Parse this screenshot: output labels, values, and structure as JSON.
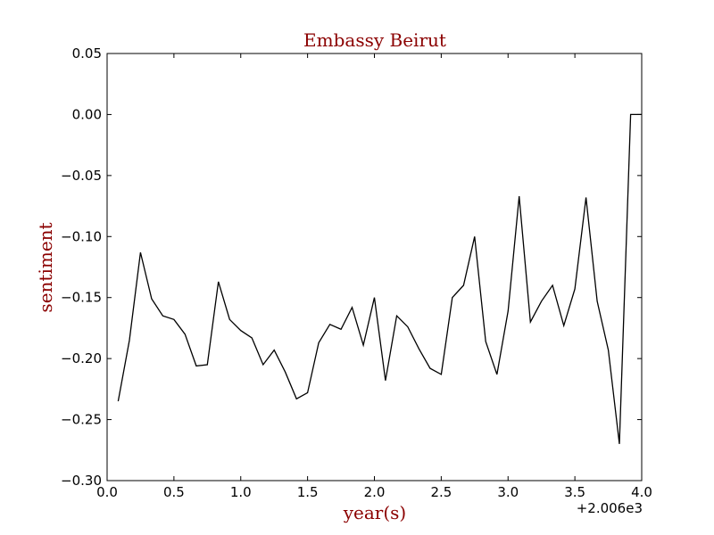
{
  "chart_data": {
    "type": "line",
    "title": "Embassy Beirut",
    "xlabel": "year(s)",
    "ylabel": "sentiment",
    "x_offset_label": "+2.006e3",
    "xlim": [
      0.0,
      4.0
    ],
    "ylim": [
      -0.3,
      0.05
    ],
    "x_ticks": [
      0.0,
      0.5,
      1.0,
      1.5,
      2.0,
      2.5,
      3.0,
      3.5,
      4.0
    ],
    "x_tick_labels": [
      "0.0",
      "0.5",
      "1.0",
      "1.5",
      "2.0",
      "2.5",
      "3.0",
      "3.5",
      "4.0"
    ],
    "y_ticks": [
      0.05,
      0.0,
      -0.05,
      -0.1,
      -0.15,
      -0.2,
      -0.25,
      -0.3
    ],
    "y_tick_labels": [
      "0.05",
      "0.00",
      "−0.05",
      "−0.10",
      "−0.15",
      "−0.20",
      "−0.25",
      "−0.30"
    ],
    "grid": false,
    "colors": {
      "title": "#8b0000",
      "axis_label": "#8b0000",
      "line": "#000000"
    },
    "series": [
      {
        "x": [
          0.083,
          0.167,
          0.25,
          0.333,
          0.417,
          0.5,
          0.583,
          0.667,
          0.75,
          0.833,
          0.917,
          1.0,
          1.083,
          1.167,
          1.25,
          1.333,
          1.417,
          1.5,
          1.583,
          1.667,
          1.75,
          1.833,
          1.917,
          2.0,
          2.083,
          2.167,
          2.25,
          2.333,
          2.417,
          2.5,
          2.583,
          2.667,
          2.75,
          2.833,
          2.917,
          3.0,
          3.083,
          3.167,
          3.25,
          3.333,
          3.417,
          3.5,
          3.583,
          3.667,
          3.75,
          3.833,
          3.917,
          4.0
        ],
        "values": [
          -0.235,
          -0.185,
          -0.113,
          -0.151,
          -0.165,
          -0.168,
          -0.18,
          -0.206,
          -0.205,
          -0.137,
          -0.168,
          -0.177,
          -0.183,
          -0.205,
          -0.193,
          -0.211,
          -0.233,
          -0.228,
          -0.187,
          -0.172,
          -0.176,
          -0.158,
          -0.189,
          -0.15,
          -0.218,
          -0.165,
          -0.174,
          -0.192,
          -0.208,
          -0.213,
          -0.15,
          -0.14,
          -0.1,
          -0.186,
          -0.213,
          -0.161,
          -0.067,
          -0.17,
          -0.153,
          -0.14,
          -0.173,
          -0.143,
          -0.068,
          -0.153,
          -0.193,
          -0.27,
          0.0,
          0.0
        ]
      }
    ]
  }
}
